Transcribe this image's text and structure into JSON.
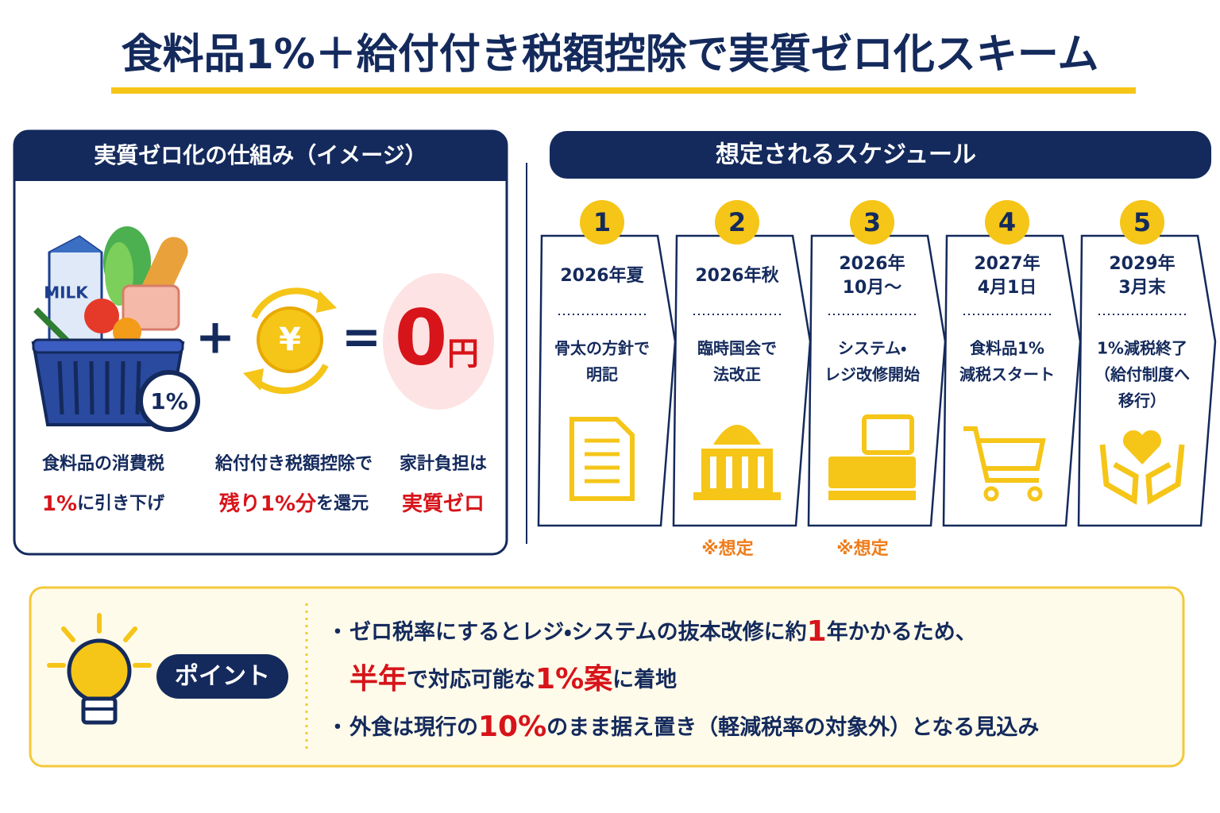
{
  "title": "食料品1%＋給付付き税額控除で実質ゼロ化スキーム",
  "mechanism": {
    "heading": "実質ゼロ化の仕組み（イメージ）",
    "milk": "MILK",
    "rate": "1%",
    "plus": "+",
    "yen": "¥",
    "equals": "=",
    "result": {
      "number": "0",
      "unit": "円"
    },
    "captions": [
      [
        [
          {
            "text": "食料品の消費税",
            "emphasis": false
          }
        ],
        [
          {
            "text": "1%",
            "emphasis": true
          },
          {
            "text": "に引き下げ",
            "emphasis": false
          }
        ]
      ],
      [
        [
          {
            "text": "給付付き税額控除で",
            "emphasis": false
          }
        ],
        [
          {
            "text": "残り1%分",
            "emphasis": true
          },
          {
            "text": "を還元",
            "emphasis": false
          }
        ]
      ],
      [
        [
          {
            "text": "家計負担は",
            "emphasis": false
          }
        ],
        [
          {
            "text": "実質ゼロ",
            "emphasis": true
          }
        ]
      ]
    ]
  },
  "schedule": {
    "heading": "想定されるスケジュール",
    "steps": [
      {
        "number": "1",
        "date": [
          "2026年夏"
        ],
        "action": [
          "骨太の方針で",
          "明記"
        ]
      },
      {
        "number": "2",
        "date": [
          "2026年秋"
        ],
        "action": [
          "臨時国会で",
          "法改正"
        ],
        "note": "※想定"
      },
      {
        "number": "3",
        "date": [
          "2026年",
          "10月～"
        ],
        "action": [
          "システム・",
          "レジ改修開始"
        ],
        "note": "※想定"
      },
      {
        "number": "4",
        "date": [
          "2027年",
          "4月1日"
        ],
        "action": [
          "食料品1%",
          "減税スタート"
        ]
      },
      {
        "number": "5",
        "date": [
          "2029年",
          "3月末"
        ],
        "action": [
          "1%減税終了",
          "（給付制度へ",
          "移行）"
        ]
      }
    ]
  },
  "point": {
    "label": "ポイント",
    "bullet": "・",
    "items": [
      [
        [
          {
            "text": "ゼロ税率にするとレジ・システムの抜本改修に約",
            "emphasis": false
          },
          {
            "text": "1",
            "emphasis": true
          },
          {
            "text": "年かかるため、",
            "emphasis": false
          }
        ],
        [
          {
            "text": "半年",
            "emphasis": true
          },
          {
            "text": "で対応可能な",
            "emphasis": false
          },
          {
            "text": "1%案",
            "emphasis": true
          },
          {
            "text": "に着地",
            "emphasis": false
          }
        ]
      ],
      [
        [
          {
            "text": "外食は現行の",
            "emphasis": false
          },
          {
            "text": "10%",
            "emphasis": true
          },
          {
            "text": "のまま据え置き（軽減税率の対象外）となる見込み",
            "emphasis": false
          }
        ]
      ]
    ]
  }
}
